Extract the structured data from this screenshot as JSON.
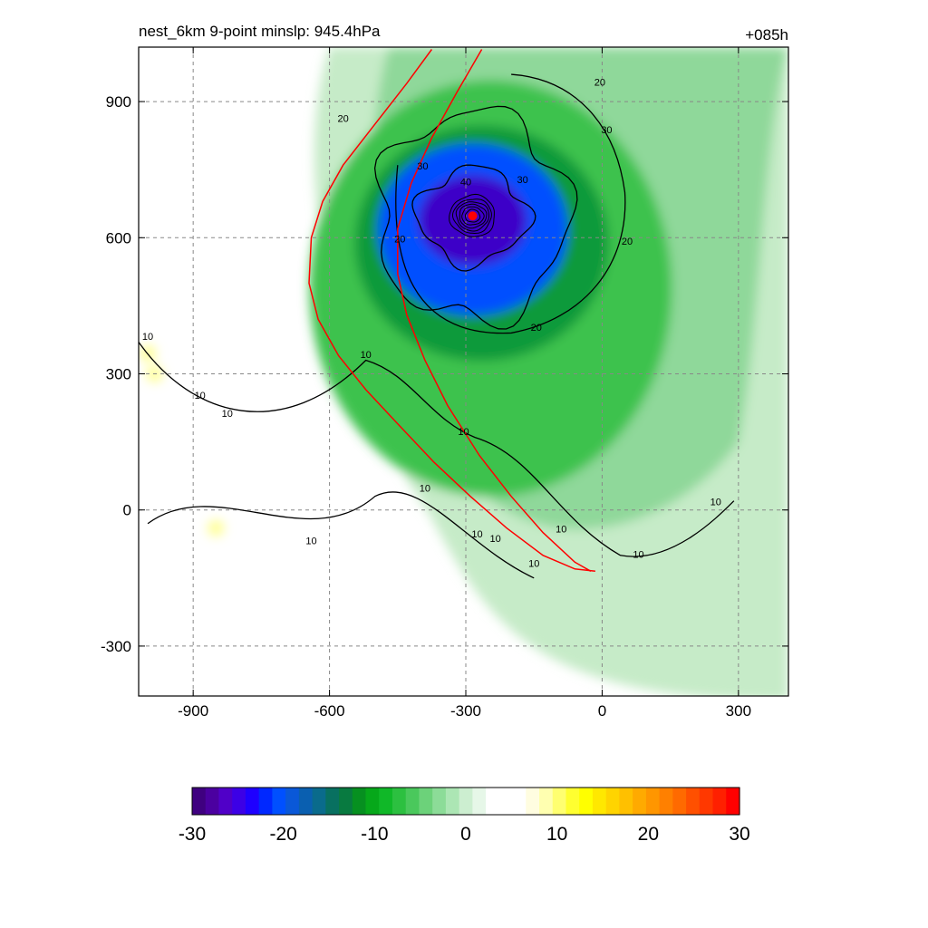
{
  "chart_data": {
    "type": "heatmap",
    "title": "nest_6km  9-point minslp: 945.4hPa",
    "time_label": "+085h",
    "xlim": [
      -1020,
      410
    ],
    "ylim": [
      -410,
      1020
    ],
    "x_ticks": [
      -900,
      -600,
      -300,
      0,
      300
    ],
    "y_ticks": [
      900,
      600,
      300,
      0,
      -300
    ],
    "grid": true,
    "colorbar": {
      "range": [
        -30,
        30
      ],
      "ticks": [
        -30,
        -20,
        -10,
        0,
        10,
        20,
        30
      ],
      "colors": [
        "#3f0080",
        "#4b00a0",
        "#5000c8",
        "#3c00e6",
        "#1e00ff",
        "#0028ff",
        "#0050ff",
        "#0a58d8",
        "#0a5fb0",
        "#0a6b8c",
        "#087060",
        "#087a40",
        "#069020",
        "#06a81a",
        "#10b828",
        "#2cc040",
        "#4ac85c",
        "#6cd27a",
        "#8cdc98",
        "#acE6b4",
        "#cceed0",
        "#e6f7e8",
        "#ffffff",
        "#ffffff",
        "#ffffff",
        "#fffde0",
        "#ffffb0",
        "#ffff70",
        "#ffff30",
        "#ffff00",
        "#ffe800",
        "#ffd400",
        "#ffc000",
        "#ffaa00",
        "#ff9600",
        "#ff8000",
        "#ff6a00",
        "#ff5000",
        "#ff3800",
        "#ff2000",
        "#ff0000"
      ]
    },
    "storm_center": {
      "x": -285,
      "y": 648
    },
    "contour_levels": [
      10,
      20,
      30,
      40
    ],
    "contour_labels": [
      {
        "text": "20",
        "x": -570,
        "y": 855
      },
      {
        "text": "20",
        "x": -5,
        "y": 935
      },
      {
        "text": "30",
        "x": 10,
        "y": 830
      },
      {
        "text": "30",
        "x": -395,
        "y": 750
      },
      {
        "text": "30",
        "x": -175,
        "y": 720
      },
      {
        "text": "40",
        "x": -300,
        "y": 715
      },
      {
        "text": "20",
        "x": -445,
        "y": 590
      },
      {
        "text": "20",
        "x": 55,
        "y": 585
      },
      {
        "text": "20",
        "x": -145,
        "y": 395
      },
      {
        "text": "10",
        "x": -1000,
        "y": 375
      },
      {
        "text": "10",
        "x": -520,
        "y": 335
      },
      {
        "text": "10",
        "x": -885,
        "y": 245
      },
      {
        "text": "10",
        "x": -825,
        "y": 205
      },
      {
        "text": "10",
        "x": -305,
        "y": 165
      },
      {
        "text": "10",
        "x": -390,
        "y": 40
      },
      {
        "text": "10",
        "x": -640,
        "y": -75
      },
      {
        "text": "10",
        "x": -275,
        "y": -60
      },
      {
        "text": "10",
        "x": -235,
        "y": -70
      },
      {
        "text": "10",
        "x": -90,
        "y": -50
      },
      {
        "text": "10",
        "x": 80,
        "y": -105
      },
      {
        "text": "10",
        "x": 250,
        "y": 10
      },
      {
        "text": "10",
        "x": -150,
        "y": -125
      }
    ],
    "red_track_outer": [
      [
        -375,
        1015
      ],
      [
        -430,
        940
      ],
      [
        -500,
        850
      ],
      [
        -570,
        760
      ],
      [
        -615,
        680
      ],
      [
        -640,
        600
      ],
      [
        -645,
        500
      ],
      [
        -625,
        420
      ],
      [
        -580,
        340
      ],
      [
        -520,
        265
      ],
      [
        -450,
        190
      ],
      [
        -370,
        105
      ],
      [
        -290,
        30
      ],
      [
        -210,
        -40
      ],
      [
        -130,
        -100
      ],
      [
        -60,
        -130
      ],
      [
        -15,
        -135
      ]
    ],
    "red_track_inner": [
      [
        -265,
        1015
      ],
      [
        -320,
        920
      ],
      [
        -375,
        820
      ],
      [
        -420,
        720
      ],
      [
        -450,
        620
      ],
      [
        -450,
        520
      ],
      [
        -430,
        430
      ],
      [
        -390,
        330
      ],
      [
        -340,
        230
      ],
      [
        -270,
        120
      ],
      [
        -200,
        30
      ],
      [
        -130,
        -50
      ],
      [
        -60,
        -115
      ],
      [
        -25,
        -135
      ]
    ]
  }
}
